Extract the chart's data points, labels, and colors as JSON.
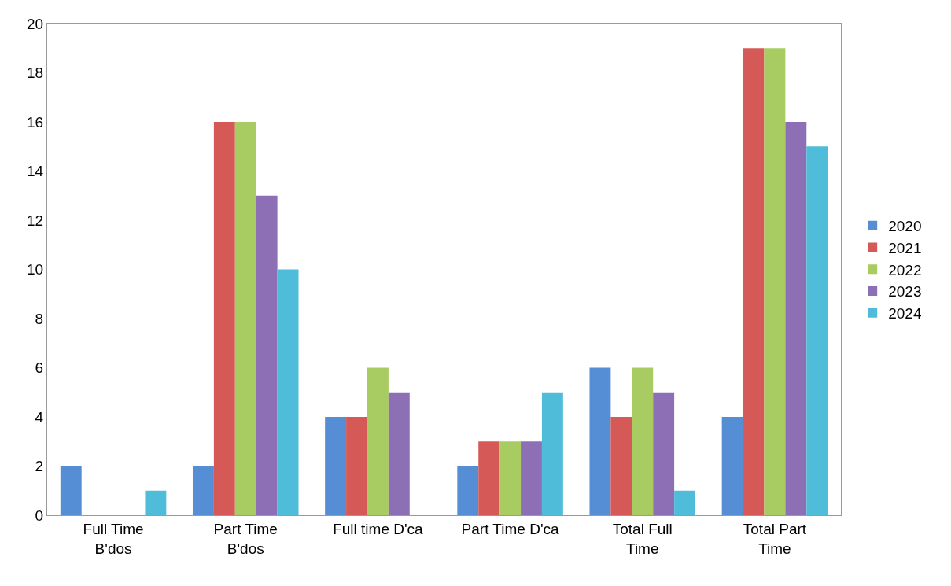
{
  "chart_data": {
    "type": "bar",
    "categories": [
      "Full Time B'dos",
      "Part Time B'dos",
      "Full time D'ca",
      "Part Time D'ca",
      "Total Full Time",
      "Total Part Time"
    ],
    "series": [
      {
        "name": "2020",
        "color": "#558ed5",
        "values": [
          2,
          2,
          4,
          2,
          6,
          4
        ]
      },
      {
        "name": "2021",
        "color": "#d55a57",
        "values": [
          0,
          16,
          4,
          3,
          4,
          19
        ]
      },
      {
        "name": "2022",
        "color": "#a8cb62",
        "values": [
          0,
          16,
          6,
          3,
          6,
          19
        ]
      },
      {
        "name": "2023",
        "color": "#8c6fb5",
        "values": [
          0,
          13,
          5,
          3,
          5,
          16
        ]
      },
      {
        "name": "2024",
        "color": "#4fbcd9",
        "values": [
          1,
          10,
          0,
          5,
          1,
          15
        ]
      }
    ],
    "ylim": [
      0,
      20
    ],
    "yticks": [
      0,
      2,
      4,
      6,
      8,
      10,
      12,
      14,
      16,
      18,
      20
    ],
    "grid": false,
    "legend": "right"
  }
}
